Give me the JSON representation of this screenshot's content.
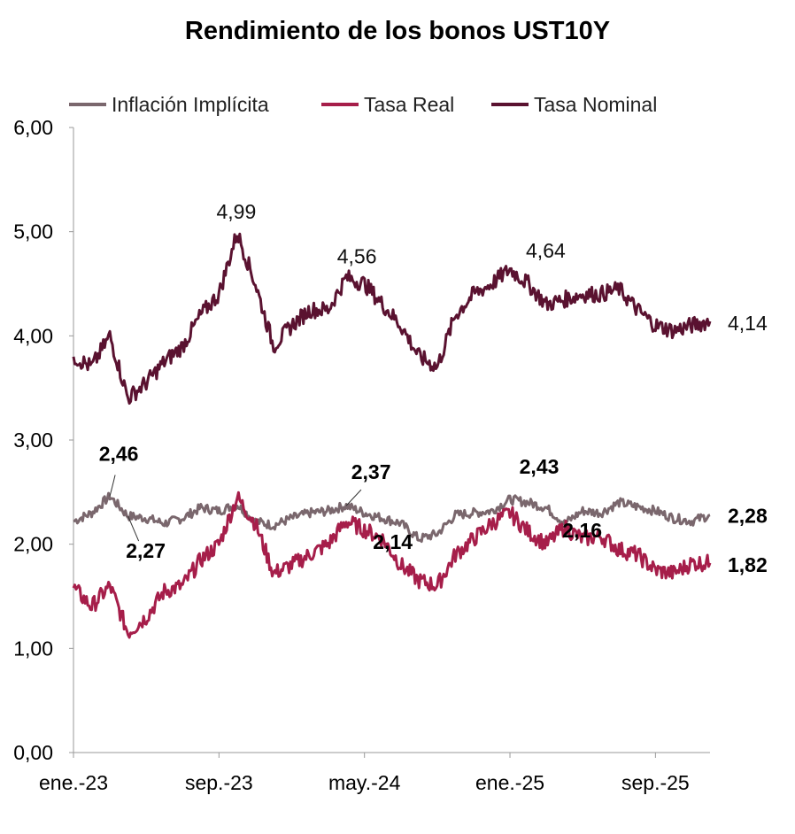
{
  "chart_data": {
    "type": "line",
    "title": "Rendimiento de los bonos UST10Y",
    "xlabel": "",
    "ylabel": "",
    "ylim": [
      0,
      6
    ],
    "yticks": [
      "0,00",
      "1,00",
      "2,00",
      "3,00",
      "4,00",
      "5,00",
      "6,00"
    ],
    "xticks": [
      "ene.-23",
      "sep.-23",
      "may.-24",
      "ene.-25",
      "sep.-25"
    ],
    "x_start": "2023-01",
    "x_end": "2025-12",
    "grid": false,
    "legend_position": "top",
    "series": [
      {
        "name": "Inflación Implícita",
        "color": "#7a676d",
        "points": [
          [
            "2023-01",
            2.22
          ],
          [
            "2023-02",
            2.3
          ],
          [
            "2023-03",
            2.46
          ],
          [
            "2023-04",
            2.27
          ],
          [
            "2023-05",
            2.25
          ],
          [
            "2023-06",
            2.2
          ],
          [
            "2023-07",
            2.25
          ],
          [
            "2023-08",
            2.35
          ],
          [
            "2023-09",
            2.32
          ],
          [
            "2023-10",
            2.38
          ],
          [
            "2023-11",
            2.22
          ],
          [
            "2023-12",
            2.18
          ],
          [
            "2024-01",
            2.25
          ],
          [
            "2024-02",
            2.3
          ],
          [
            "2024-03",
            2.32
          ],
          [
            "2024-04",
            2.37
          ],
          [
            "2024-05",
            2.3
          ],
          [
            "2024-06",
            2.25
          ],
          [
            "2024-07",
            2.2
          ],
          [
            "2024-08",
            2.05
          ],
          [
            "2024-09",
            2.1
          ],
          [
            "2024-10",
            2.28
          ],
          [
            "2024-11",
            2.3
          ],
          [
            "2024-12",
            2.32
          ],
          [
            "2025-01",
            2.43
          ],
          [
            "2025-02",
            2.4
          ],
          [
            "2025-03",
            2.35
          ],
          [
            "2025-04",
            2.2
          ],
          [
            "2025-05",
            2.32
          ],
          [
            "2025-06",
            2.3
          ],
          [
            "2025-07",
            2.4
          ],
          [
            "2025-08",
            2.36
          ],
          [
            "2025-09",
            2.32
          ],
          [
            "2025-10",
            2.25
          ],
          [
            "2025-11",
            2.22
          ],
          [
            "2025-12",
            2.28
          ]
        ]
      },
      {
        "name": "Tasa Real",
        "color": "#a61e4a",
        "points": [
          [
            "2023-01",
            1.58
          ],
          [
            "2023-02",
            1.4
          ],
          [
            "2023-03",
            1.6
          ],
          [
            "2023-04",
            1.15
          ],
          [
            "2023-05",
            1.3
          ],
          [
            "2023-06",
            1.55
          ],
          [
            "2023-07",
            1.6
          ],
          [
            "2023-08",
            1.85
          ],
          [
            "2023-09",
            2.0
          ],
          [
            "2023-10",
            2.45
          ],
          [
            "2023-11",
            2.2
          ],
          [
            "2023-12",
            1.72
          ],
          [
            "2024-01",
            1.8
          ],
          [
            "2024-02",
            1.9
          ],
          [
            "2024-03",
            2.0
          ],
          [
            "2024-04",
            2.22
          ],
          [
            "2024-05",
            2.14
          ],
          [
            "2024-06",
            2.05
          ],
          [
            "2024-07",
            1.8
          ],
          [
            "2024-08",
            1.65
          ],
          [
            "2024-09",
            1.6
          ],
          [
            "2024-10",
            1.9
          ],
          [
            "2024-11",
            2.05
          ],
          [
            "2024-12",
            2.2
          ],
          [
            "2025-01",
            2.3
          ],
          [
            "2025-02",
            2.12
          ],
          [
            "2025-03",
            2.0
          ],
          [
            "2025-04",
            2.16
          ],
          [
            "2025-05",
            2.05
          ],
          [
            "2025-06",
            2.08
          ],
          [
            "2025-07",
            1.95
          ],
          [
            "2025-08",
            1.9
          ],
          [
            "2025-09",
            1.75
          ],
          [
            "2025-10",
            1.72
          ],
          [
            "2025-11",
            1.82
          ],
          [
            "2025-12",
            1.82
          ]
        ]
      },
      {
        "name": "Tasa Nominal",
        "color": "#5a1230",
        "points": [
          [
            "2023-01",
            3.8
          ],
          [
            "2023-02",
            3.7
          ],
          [
            "2023-03",
            4.0
          ],
          [
            "2023-04",
            3.4
          ],
          [
            "2023-05",
            3.55
          ],
          [
            "2023-06",
            3.75
          ],
          [
            "2023-07",
            3.9
          ],
          [
            "2023-08",
            4.2
          ],
          [
            "2023-09",
            4.4
          ],
          [
            "2023-10",
            4.99
          ],
          [
            "2023-11",
            4.5
          ],
          [
            "2023-12",
            3.9
          ],
          [
            "2024-01",
            4.1
          ],
          [
            "2024-02",
            4.25
          ],
          [
            "2024-03",
            4.25
          ],
          [
            "2024-04",
            4.56
          ],
          [
            "2024-05",
            4.5
          ],
          [
            "2024-06",
            4.3
          ],
          [
            "2024-07",
            4.1
          ],
          [
            "2024-08",
            3.8
          ],
          [
            "2024-09",
            3.7
          ],
          [
            "2024-10",
            4.2
          ],
          [
            "2024-11",
            4.4
          ],
          [
            "2024-12",
            4.5
          ],
          [
            "2025-01",
            4.64
          ],
          [
            "2025-02",
            4.5
          ],
          [
            "2025-03",
            4.3
          ],
          [
            "2025-04",
            4.35
          ],
          [
            "2025-05",
            4.4
          ],
          [
            "2025-06",
            4.4
          ],
          [
            "2025-07",
            4.45
          ],
          [
            "2025-08",
            4.25
          ],
          [
            "2025-09",
            4.1
          ],
          [
            "2025-10",
            4.05
          ],
          [
            "2025-11",
            4.1
          ],
          [
            "2025-12",
            4.14
          ]
        ]
      }
    ],
    "annotations": [
      {
        "text": "4,99",
        "series": "Tasa Nominal",
        "x": "2023-10",
        "y": 4.99,
        "bold": false
      },
      {
        "text": "4,56",
        "series": "Tasa Nominal",
        "x": "2024-04",
        "y": 4.56,
        "bold": false
      },
      {
        "text": "4,64",
        "series": "Tasa Nominal",
        "x": "2025-01",
        "y": 4.64,
        "bold": false
      },
      {
        "text": "4,14",
        "series": "Tasa Nominal",
        "x": "2025-12",
        "y": 4.14,
        "bold": false
      },
      {
        "text": "2,46",
        "series": "Inflación Implícita",
        "x": "2023-03",
        "y": 2.46,
        "bold": true
      },
      {
        "text": "2,27",
        "series": "Inflación Implícita",
        "x": "2023-04",
        "y": 2.27,
        "bold": true
      },
      {
        "text": "2,37",
        "series": "Inflación Implícita",
        "x": "2024-04",
        "y": 2.37,
        "bold": true
      },
      {
        "text": "2,14",
        "series": "Tasa Real",
        "x": "2024-05",
        "y": 2.14,
        "bold": true
      },
      {
        "text": "2,43",
        "series": "Inflación Implícita",
        "x": "2025-01",
        "y": 2.43,
        "bold": true
      },
      {
        "text": "2,16",
        "series": "Tasa Real",
        "x": "2025-04",
        "y": 2.16,
        "bold": true
      },
      {
        "text": "2,28",
        "series": "Inflación Implícita",
        "x": "2025-12",
        "y": 2.28,
        "bold": true
      },
      {
        "text": "1,82",
        "series": "Tasa Real",
        "x": "2025-12",
        "y": 1.82,
        "bold": true
      }
    ]
  }
}
